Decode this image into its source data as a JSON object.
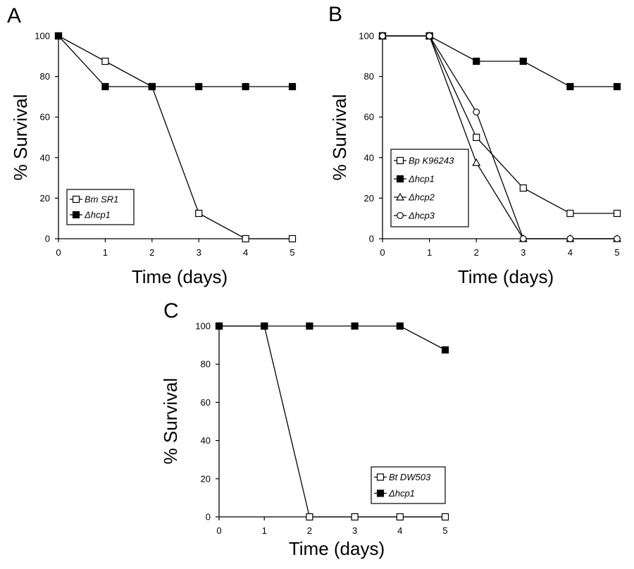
{
  "chart_data": [
    {
      "panel": "A",
      "type": "line",
      "xlabel": "Time (days)",
      "ylabel": "% Survival",
      "x": [
        0,
        1,
        2,
        3,
        4,
        5
      ],
      "xlim": [
        0,
        5
      ],
      "ylim": [
        0,
        100
      ],
      "xticks": [
        "0",
        "1",
        "2",
        "3",
        "4",
        "5"
      ],
      "yticks": [
        "0",
        "20",
        "40",
        "60",
        "80",
        "100"
      ],
      "legend_position": "bottom-left",
      "series": [
        {
          "name": "Bm SR1",
          "marker": "open-square",
          "values": [
            100,
            87.5,
            75,
            12.5,
            0,
            0
          ]
        },
        {
          "name": "Δhcp1",
          "marker": "filled-square",
          "values": [
            100,
            75,
            75,
            75,
            75,
            75
          ]
        }
      ]
    },
    {
      "panel": "B",
      "type": "line",
      "xlabel": "Time (days)",
      "ylabel": "% Survival",
      "x": [
        0,
        1,
        2,
        3,
        4,
        5
      ],
      "xlim": [
        0,
        5
      ],
      "ylim": [
        0,
        100
      ],
      "xticks": [
        "0",
        "1",
        "2",
        "3",
        "4",
        "5"
      ],
      "yticks": [
        "0",
        "20",
        "40",
        "60",
        "80",
        "100"
      ],
      "legend_position": "middle-left",
      "series": [
        {
          "name": "Bp K96243",
          "marker": "open-square",
          "values": [
            100,
            100,
            50,
            25,
            12.5,
            12.5
          ]
        },
        {
          "name": "Δhcp1",
          "marker": "filled-square",
          "values": [
            100,
            100,
            87.5,
            87.5,
            75,
            75
          ]
        },
        {
          "name": "Δhcp2",
          "marker": "open-triangle",
          "values": [
            100,
            100,
            37.5,
            0,
            0,
            0
          ]
        },
        {
          "name": "Δhcp3",
          "marker": "open-circle",
          "values": [
            100,
            100,
            62.5,
            0,
            0,
            0
          ]
        }
      ]
    },
    {
      "panel": "C",
      "type": "line",
      "xlabel": "Time (days)",
      "ylabel": "% Survival",
      "x": [
        0,
        1,
        2,
        3,
        4,
        5
      ],
      "xlim": [
        0,
        5
      ],
      "ylim": [
        0,
        100
      ],
      "xticks": [
        "0",
        "1",
        "2",
        "3",
        "4",
        "5"
      ],
      "yticks": [
        "0",
        "20",
        "40",
        "60",
        "80",
        "100"
      ],
      "legend_position": "bottom-right",
      "series": [
        {
          "name": "Bt DW503",
          "marker": "open-square",
          "values": [
            100,
            100,
            0,
            0,
            0,
            0
          ]
        },
        {
          "name": "Δhcp1",
          "marker": "filled-square",
          "values": [
            100,
            100,
            100,
            100,
            100,
            87.5
          ]
        }
      ]
    }
  ]
}
